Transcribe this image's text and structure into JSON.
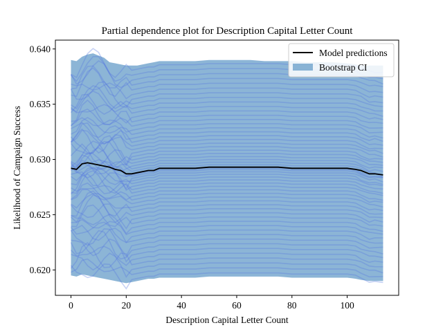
{
  "chart_data": {
    "type": "line",
    "title": "Partial dependence plot for Description Capital Letter Count",
    "xlabel": "Description Capital Letter Count",
    "ylabel": "Likelihood of Campaign Success",
    "xlim": [
      -5.65,
      118.65
    ],
    "ylim": [
      0.6177,
      0.6408
    ],
    "xticks": [
      0,
      20,
      40,
      60,
      80,
      100
    ],
    "xtick_labels": [
      "0",
      "20",
      "40",
      "60",
      "80",
      "100"
    ],
    "yticks": [
      0.62,
      0.625,
      0.63,
      0.635,
      0.64
    ],
    "ytick_labels": [
      "0.620",
      "0.625",
      "0.630",
      "0.635",
      "0.640"
    ],
    "grid": false,
    "legend": {
      "placement": "top-right",
      "entries": [
        {
          "label": "Model predictions",
          "kind": "line",
          "color": "#000000"
        },
        {
          "label": "Bootstrap CI",
          "kind": "patch",
          "color": "#6fa3cc"
        }
      ]
    },
    "series": [
      {
        "name": "Model predictions",
        "color": "#000000",
        "x": [
          0,
          2,
          4,
          6,
          8,
          10,
          12,
          14,
          16,
          18,
          20,
          22,
          24,
          26,
          28,
          30,
          32,
          34,
          36,
          38,
          40,
          45,
          50,
          55,
          60,
          65,
          70,
          75,
          80,
          85,
          90,
          95,
          100,
          103,
          105,
          108,
          110,
          113
        ],
        "y": [
          0.6292,
          0.6291,
          0.6296,
          0.6297,
          0.6296,
          0.6295,
          0.6294,
          0.6293,
          0.6291,
          0.629,
          0.6287,
          0.6287,
          0.6288,
          0.6289,
          0.629,
          0.629,
          0.6292,
          0.6292,
          0.6292,
          0.6292,
          0.6292,
          0.6292,
          0.6293,
          0.6293,
          0.6293,
          0.6293,
          0.6293,
          0.6293,
          0.6292,
          0.6292,
          0.6292,
          0.6292,
          0.6292,
          0.6291,
          0.629,
          0.6287,
          0.6287,
          0.6286
        ]
      },
      {
        "name": "Bootstrap CI",
        "color": "#6fa3cc",
        "x": [
          0,
          2,
          4,
          6,
          8,
          10,
          12,
          14,
          16,
          18,
          20,
          22,
          24,
          26,
          28,
          30,
          32,
          34,
          36,
          38,
          40,
          45,
          50,
          55,
          60,
          65,
          70,
          75,
          80,
          85,
          90,
          95,
          100,
          103,
          105,
          108,
          110,
          113
        ],
        "upper": [
          0.639,
          0.6389,
          0.6393,
          0.6395,
          0.6396,
          0.6394,
          0.6392,
          0.6388,
          0.6387,
          0.6386,
          0.6385,
          0.6385,
          0.6385,
          0.6386,
          0.6387,
          0.6388,
          0.6389,
          0.6389,
          0.6389,
          0.6389,
          0.6389,
          0.6389,
          0.639,
          0.639,
          0.639,
          0.639,
          0.6389,
          0.6389,
          0.6389,
          0.6388,
          0.6388,
          0.6388,
          0.6387,
          0.6386,
          0.6385,
          0.6385,
          0.6385,
          0.6385
        ],
        "lower": [
          0.6195,
          0.6194,
          0.6196,
          0.6195,
          0.6194,
          0.6193,
          0.6192,
          0.6191,
          0.619,
          0.6189,
          0.6188,
          0.6189,
          0.619,
          0.6191,
          0.6192,
          0.6192,
          0.6193,
          0.6193,
          0.6193,
          0.6193,
          0.6193,
          0.6193,
          0.6194,
          0.6194,
          0.6194,
          0.6194,
          0.6194,
          0.6194,
          0.6193,
          0.6193,
          0.6193,
          0.6193,
          0.6193,
          0.6192,
          0.6191,
          0.619,
          0.619,
          0.619
        ]
      }
    ],
    "individual_curves": {
      "color": "#5575e0",
      "count": 55,
      "x": [
        0,
        2,
        4,
        6,
        8,
        10,
        12,
        14,
        16,
        18,
        20,
        22,
        24,
        26,
        28,
        30,
        32,
        34,
        36,
        38,
        40,
        45,
        50,
        55,
        60,
        65,
        70,
        75,
        80,
        85,
        90,
        95,
        100,
        103,
        105,
        108,
        110,
        113
      ],
      "y_range": [
        0.6194,
        0.6388
      ]
    }
  }
}
